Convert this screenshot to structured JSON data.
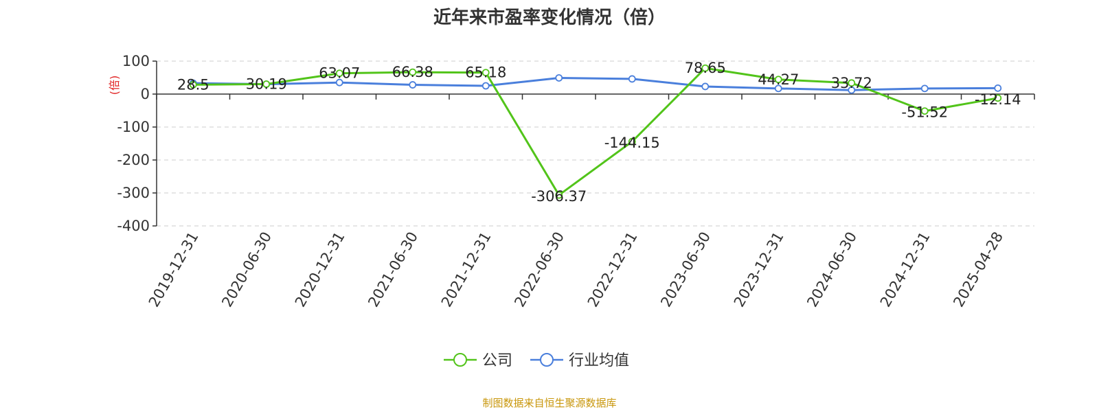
{
  "colors": {
    "company": "#52c41a",
    "industry": "#4a7fdc",
    "ylabel": "#e02020",
    "source": "#c8960a",
    "grid": "#cccccc",
    "axis": "#333333"
  },
  "source_text": "制图数据来自恒生聚源数据库",
  "chart_data": {
    "type": "line",
    "title": "近年来市盈率变化情况（倍）",
    "ylabel": "(倍)",
    "xlabel": "",
    "ylim": [
      -400,
      100
    ],
    "yticks": [
      100,
      0,
      -100,
      -200,
      -300,
      -400
    ],
    "grid": true,
    "legend_position": "bottom-center",
    "categories": [
      "2019-12-31",
      "2020-06-30",
      "2020-12-31",
      "2021-06-30",
      "2021-12-31",
      "2022-06-30",
      "2022-12-31",
      "2023-06-30",
      "2023-12-31",
      "2024-06-30",
      "2024-12-31",
      "2025-04-28"
    ],
    "series": [
      {
        "name": "公司",
        "values": [
          28.5,
          30.19,
          63.07,
          66.38,
          65.18,
          -306.37,
          -144.15,
          78.65,
          44.27,
          33.72,
          -51.52,
          -12.14
        ],
        "labels": [
          "28.5",
          "30.19",
          "63.07",
          "66.38",
          "65.18",
          "-306.37",
          "-144.15",
          "78.65",
          "44.27",
          "33.72",
          "-51.52",
          "-12.14"
        ]
      },
      {
        "name": "行业均值",
        "values": [
          33,
          30,
          35,
          28,
          25,
          49,
          46,
          23,
          17,
          12,
          17,
          18
        ]
      }
    ]
  }
}
